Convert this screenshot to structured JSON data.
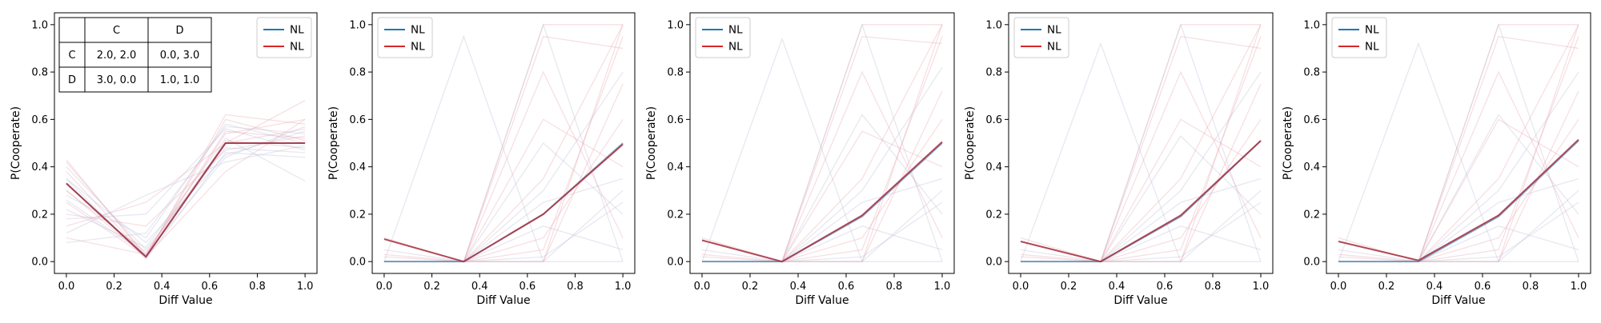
{
  "legend": {
    "entries": [
      {
        "label": "NL",
        "color": "#1f77b4"
      },
      {
        "label": "NL",
        "color": "#d62728"
      }
    ]
  },
  "payoff_table": {
    "col_headers": [
      "",
      "C",
      "D"
    ],
    "rows": [
      {
        "label": "C",
        "cells": [
          "2.0, 2.0",
          "0.0, 3.0"
        ]
      },
      {
        "label": "D",
        "cells": [
          "3.0, 0.0",
          "1.0, 1.0"
        ]
      }
    ]
  },
  "colors": {
    "blue": "#1f77b4",
    "red": "#d62728",
    "mean_line": "#a83545",
    "faint_blue": "#b9bed6",
    "faint_red": "#e8a4b0"
  },
  "chart_data": [
    {
      "type": "line",
      "xlabel": "Diff Value",
      "ylabel": "P(Cooperate)",
      "xlim": [
        -0.05,
        1.05
      ],
      "ylim": [
        -0.05,
        1.05
      ],
      "xticks": [
        "0.0",
        "0.2",
        "0.4",
        "0.6",
        "0.8",
        "1.0"
      ],
      "yticks": [
        "0.0",
        "0.2",
        "0.4",
        "0.6",
        "0.8",
        "1.0"
      ],
      "x": [
        0.0,
        0.3333,
        0.6667,
        1.0
      ],
      "series": [
        {
          "name": "NL",
          "color": "#1f77b4",
          "values": [
            0.33,
            0.02,
            0.5,
            0.5
          ]
        },
        {
          "name": "NL",
          "color": "#d62728",
          "values": [
            0.33,
            0.02,
            0.5,
            0.5
          ]
        }
      ],
      "faint_series": [
        [
          0.42,
          0.03,
          0.55,
          0.52
        ],
        [
          0.4,
          0.05,
          0.48,
          0.46
        ],
        [
          0.38,
          0.02,
          0.62,
          0.58
        ],
        [
          0.35,
          0.08,
          0.45,
          0.55
        ],
        [
          0.3,
          0.04,
          0.5,
          0.68
        ],
        [
          0.28,
          0.1,
          0.58,
          0.5
        ],
        [
          0.25,
          0.02,
          0.38,
          0.6
        ],
        [
          0.22,
          0.06,
          0.52,
          0.34
        ],
        [
          0.2,
          0.15,
          0.47,
          0.53
        ],
        [
          0.18,
          0.2,
          0.56,
          0.47
        ],
        [
          0.15,
          0.25,
          0.5,
          0.56
        ],
        [
          0.12,
          0.28,
          0.42,
          0.49
        ],
        [
          0.1,
          0.03,
          0.54,
          0.6
        ],
        [
          0.35,
          0.01,
          0.46,
          0.44
        ],
        [
          0.3,
          0.02,
          0.6,
          0.51
        ],
        [
          0.26,
          0.03,
          0.44,
          0.57
        ],
        [
          0.43,
          0.02,
          0.51,
          0.48
        ],
        [
          0.08,
          0.12,
          0.57,
          0.54
        ]
      ]
    },
    {
      "type": "line",
      "xlabel": "Diff Value",
      "ylabel": "P(Cooperate)",
      "xlim": [
        -0.05,
        1.05
      ],
      "ylim": [
        -0.05,
        1.05
      ],
      "xticks": [
        "0.0",
        "0.2",
        "0.4",
        "0.6",
        "0.8",
        "1.0"
      ],
      "yticks": [
        "0.0",
        "0.2",
        "0.4",
        "0.6",
        "0.8",
        "1.0"
      ],
      "x": [
        0.0,
        0.3333,
        0.6667,
        1.0
      ],
      "series": [
        {
          "name": "NL",
          "color": "#1f77b4",
          "values": [
            0.0,
            0.0,
            0.2,
            0.5
          ]
        },
        {
          "name": "NL",
          "color": "#d62728",
          "values": [
            0.095,
            0.0,
            0.2,
            0.495
          ]
        }
      ],
      "faint_series": [
        [
          0.0,
          0.0,
          1.0,
          1.0
        ],
        [
          0.0,
          0.0,
          1.0,
          0.0
        ],
        [
          0.0,
          0.0,
          0.0,
          1.0
        ],
        [
          0.0,
          0.95,
          0.0,
          0.0
        ],
        [
          0.0,
          0.0,
          0.95,
          0.9
        ],
        [
          0.05,
          0.0,
          0.3,
          0.8
        ],
        [
          0.0,
          0.0,
          0.05,
          0.95
        ],
        [
          0.0,
          0.0,
          0.5,
          0.2
        ],
        [
          0.02,
          0.0,
          0.1,
          0.6
        ],
        [
          0.0,
          0.0,
          0.25,
          0.35
        ],
        [
          0.1,
          0.0,
          0.0,
          0.75
        ],
        [
          0.0,
          0.0,
          0.15,
          0.05
        ],
        [
          0.0,
          0.0,
          0.6,
          0.4
        ],
        [
          0.0,
          0.0,
          0.02,
          0.25
        ],
        [
          0.03,
          0.0,
          0.35,
          1.0
        ],
        [
          0.0,
          0.0,
          0.0,
          0.3
        ],
        [
          0.0,
          0.0,
          0.8,
          0.1
        ]
      ]
    },
    {
      "type": "line",
      "xlabel": "Diff Value",
      "ylabel": "P(Cooperate)",
      "xlim": [
        -0.05,
        1.05
      ],
      "ylim": [
        -0.05,
        1.05
      ],
      "xticks": [
        "0.0",
        "0.2",
        "0.4",
        "0.6",
        "0.8",
        "1.0"
      ],
      "yticks": [
        "0.0",
        "0.2",
        "0.4",
        "0.6",
        "0.8",
        "1.0"
      ],
      "x": [
        0.0,
        0.3333,
        0.6667,
        1.0
      ],
      "series": [
        {
          "name": "NL",
          "color": "#1f77b4",
          "values": [
            0.0,
            0.0,
            0.19,
            0.5
          ]
        },
        {
          "name": "NL",
          "color": "#d62728",
          "values": [
            0.09,
            0.0,
            0.195,
            0.505
          ]
        }
      ],
      "faint_series": [
        [
          0.0,
          0.0,
          1.0,
          1.0
        ],
        [
          0.0,
          0.0,
          1.0,
          0.0
        ],
        [
          0.0,
          0.0,
          0.0,
          1.0
        ],
        [
          0.0,
          0.94,
          0.0,
          0.0
        ],
        [
          0.0,
          0.0,
          0.95,
          0.92
        ],
        [
          0.05,
          0.0,
          0.3,
          0.82
        ],
        [
          0.0,
          0.0,
          0.05,
          0.95
        ],
        [
          0.0,
          0.0,
          0.62,
          0.2
        ],
        [
          0.02,
          0.0,
          0.1,
          0.6
        ],
        [
          0.0,
          0.0,
          0.25,
          0.35
        ],
        [
          0.1,
          0.0,
          0.0,
          0.72
        ],
        [
          0.0,
          0.0,
          0.15,
          0.05
        ],
        [
          0.0,
          0.0,
          0.55,
          0.4
        ],
        [
          0.0,
          0.0,
          0.02,
          0.25
        ],
        [
          0.03,
          0.0,
          0.35,
          1.0
        ],
        [
          0.0,
          0.0,
          0.0,
          0.3
        ],
        [
          0.0,
          0.0,
          0.8,
          0.1
        ]
      ]
    },
    {
      "type": "line",
      "xlabel": "Diff Value",
      "ylabel": "P(Cooperate)",
      "xlim": [
        -0.05,
        1.05
      ],
      "ylim": [
        -0.05,
        1.05
      ],
      "xticks": [
        "0.0",
        "0.2",
        "0.4",
        "0.6",
        "0.8",
        "1.0"
      ],
      "yticks": [
        "0.0",
        "0.2",
        "0.4",
        "0.6",
        "0.8",
        "1.0"
      ],
      "x": [
        0.0,
        0.3333,
        0.6667,
        1.0
      ],
      "series": [
        {
          "name": "NL",
          "color": "#1f77b4",
          "values": [
            0.0,
            0.0,
            0.19,
            0.51
          ]
        },
        {
          "name": "NL",
          "color": "#d62728",
          "values": [
            0.085,
            0.0,
            0.195,
            0.51
          ]
        }
      ],
      "faint_series": [
        [
          0.0,
          0.0,
          1.0,
          1.0
        ],
        [
          0.0,
          0.0,
          1.0,
          0.0
        ],
        [
          0.0,
          0.0,
          0.0,
          1.0
        ],
        [
          0.0,
          0.92,
          0.0,
          0.0
        ],
        [
          0.0,
          0.0,
          0.95,
          0.9
        ],
        [
          0.05,
          0.0,
          0.3,
          0.8
        ],
        [
          0.0,
          0.0,
          0.05,
          0.95
        ],
        [
          0.0,
          0.0,
          0.53,
          0.2
        ],
        [
          0.02,
          0.0,
          0.1,
          0.6
        ],
        [
          0.0,
          0.0,
          0.25,
          0.35
        ],
        [
          0.1,
          0.0,
          0.0,
          0.75
        ],
        [
          0.0,
          0.0,
          0.15,
          0.05
        ],
        [
          0.0,
          0.0,
          0.6,
          0.4
        ],
        [
          0.0,
          0.0,
          0.02,
          0.25
        ],
        [
          0.03,
          0.0,
          0.35,
          1.0
        ],
        [
          0.0,
          0.0,
          0.0,
          0.3
        ],
        [
          0.0,
          0.0,
          0.8,
          0.1
        ]
      ]
    },
    {
      "type": "line",
      "xlabel": "Diff Value",
      "ylabel": "P(Cooperate)",
      "xlim": [
        -0.05,
        1.05
      ],
      "ylim": [
        -0.05,
        1.05
      ],
      "xticks": [
        "0.0",
        "0.2",
        "0.4",
        "0.6",
        "0.8",
        "1.0"
      ],
      "yticks": [
        "0.0",
        "0.2",
        "0.4",
        "0.6",
        "0.8",
        "1.0"
      ],
      "x": [
        0.0,
        0.3333,
        0.6667,
        1.0
      ],
      "series": [
        {
          "name": "NL",
          "color": "#1f77b4",
          "values": [
            0.0,
            0.0,
            0.19,
            0.51
          ]
        },
        {
          "name": "NL",
          "color": "#d62728",
          "values": [
            0.085,
            0.005,
            0.195,
            0.515
          ]
        }
      ],
      "faint_series": [
        [
          0.0,
          0.0,
          1.0,
          1.0
        ],
        [
          0.0,
          0.0,
          1.0,
          0.0
        ],
        [
          0.0,
          0.0,
          0.0,
          1.0
        ],
        [
          0.0,
          0.92,
          0.0,
          0.0
        ],
        [
          0.0,
          0.0,
          0.95,
          0.9
        ],
        [
          0.05,
          0.0,
          0.3,
          0.8
        ],
        [
          0.0,
          0.0,
          0.05,
          0.95
        ],
        [
          0.0,
          0.0,
          0.62,
          0.2
        ],
        [
          0.02,
          0.0,
          0.1,
          0.6
        ],
        [
          0.0,
          0.0,
          0.25,
          0.35
        ],
        [
          0.1,
          0.0,
          0.0,
          0.72
        ],
        [
          0.0,
          0.0,
          0.15,
          0.05
        ],
        [
          0.0,
          0.0,
          0.6,
          0.4
        ],
        [
          0.0,
          0.0,
          0.02,
          0.25
        ],
        [
          0.03,
          0.0,
          0.35,
          1.0
        ],
        [
          0.0,
          0.0,
          0.0,
          0.3
        ],
        [
          0.0,
          0.0,
          0.8,
          0.1
        ]
      ]
    }
  ]
}
